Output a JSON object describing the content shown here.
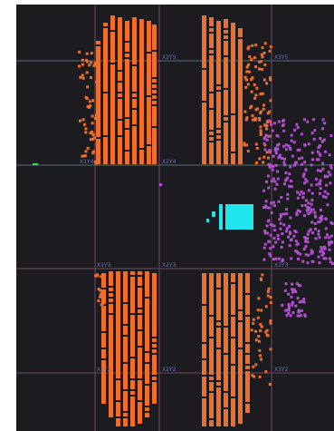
{
  "viewer": {
    "grid_labels": [
      {
        "id": "x2y5",
        "text": "X2Y5"
      },
      {
        "id": "x3y5",
        "text": "X3Y5"
      },
      {
        "id": "x1y4",
        "text": "X1Y4"
      },
      {
        "id": "x2y4",
        "text": "X2Y4"
      },
      {
        "id": "x1y3",
        "text": "X1Y3"
      },
      {
        "id": "x2y3",
        "text": "X2Y3"
      },
      {
        "id": "x3y3",
        "text": "X3Y3"
      },
      {
        "id": "x1y2",
        "text": "X1Y2"
      },
      {
        "id": "x2y2",
        "text": "X2Y2"
      },
      {
        "id": "x3y2",
        "text": "X3Y2"
      }
    ],
    "colors": {
      "background": "#1c1c20",
      "grid_line": "#6b4a60",
      "grid_line_light": "#4f6f73",
      "label": "#6c74b8",
      "orange_cells": "#ee6f2b",
      "purple_cells": "#b04fd0",
      "cyan_cells": "#1fe5ee",
      "marker_green": "#3de13d"
    }
  }
}
